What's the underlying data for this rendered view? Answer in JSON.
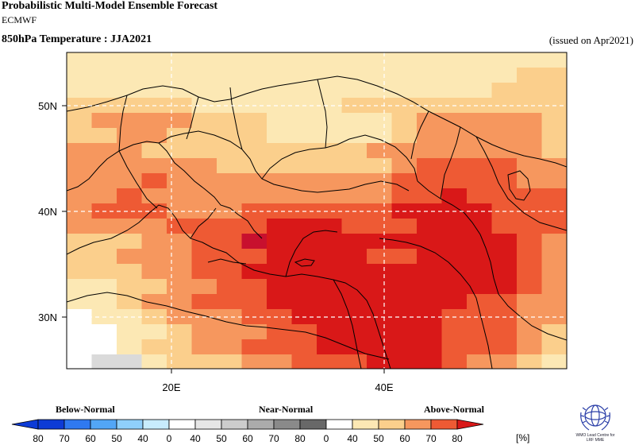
{
  "header": {
    "title": "Probabilistic Multi-Model Ensemble Forecast",
    "subtitle": "ECMWF",
    "variable": "850hPa Temperature : JJA2021",
    "issued": "(issued on Apr2021)"
  },
  "map": {
    "lon_labels": [
      "20E",
      "40E"
    ],
    "lat_labels": [
      "50N",
      "40N",
      "30N"
    ],
    "grid_style": "dashed white",
    "land_borders": "black coastlines and country borders"
  },
  "legend": {
    "categories": [
      "Below-Normal",
      "Near-Normal",
      "Above-Normal"
    ],
    "tick_labels": [
      "80",
      "70",
      "60",
      "50",
      "40",
      "0",
      "40",
      "50",
      "60",
      "70",
      "80",
      "0",
      "40",
      "50",
      "60",
      "70",
      "80"
    ],
    "unit": "[%]",
    "below_colors": [
      "#0d3bd6",
      "#2f79f0",
      "#52a6f6",
      "#8fcffb",
      "#c8ecfd"
    ],
    "near_colors": [
      "#e6e6e6",
      "#cccccc",
      "#ababab",
      "#8a8a8a",
      "#686868"
    ],
    "above_colors": [
      "#fce8b4",
      "#fbcf8c",
      "#f6975e",
      "#ee5a34",
      "#d91818"
    ]
  },
  "logo": {
    "caption_line1": "WMO Lead Centre for",
    "caption_line2": "LRF MME"
  }
}
